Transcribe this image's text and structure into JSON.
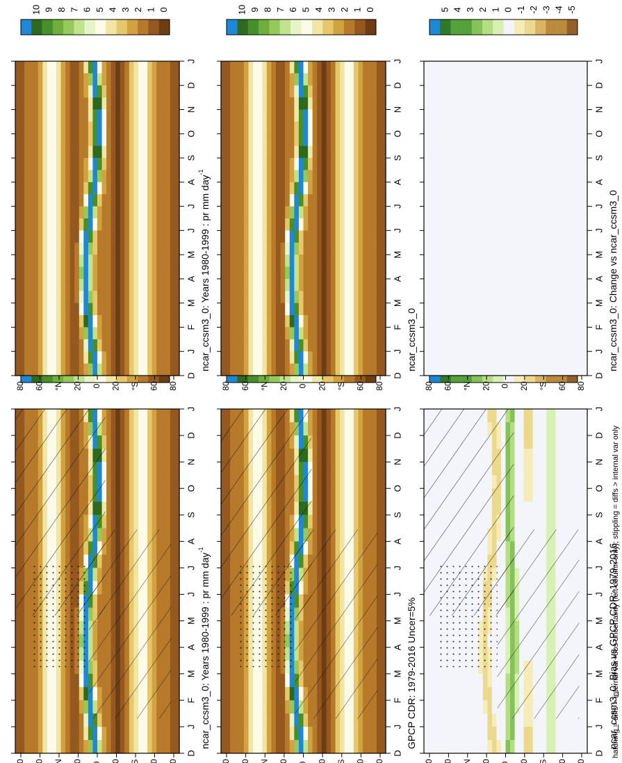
{
  "figure": {
    "footnote": "hatching = diffs > internal var+obs uncertainty (left column only); stippling = diffs > internal var only"
  },
  "chart_data": [
    {
      "type": "heatmap",
      "panel": "left-top",
      "title": "ncar_ccsm3_0: Years 1980-1999 : pr mm day",
      "title_sup": "-1",
      "x": [
        "D",
        "J",
        "F",
        "M",
        "A",
        "M",
        "J",
        "J",
        "A",
        "S",
        "O",
        "N",
        "D",
        "J"
      ],
      "y_ticks": [
        "80",
        "60",
        "°N",
        "20",
        "0",
        "20",
        "°S",
        "60",
        "80"
      ],
      "colorbar": [
        "10",
        "9",
        "8",
        "7",
        "6",
        "5",
        "4",
        "3",
        "2",
        "1",
        "0"
      ],
      "field": "mean",
      "hatched": true
    },
    {
      "type": "heatmap",
      "panel": "left-middle",
      "title": "GPCP CDR: 1979-2016 Uncer=5%",
      "x": [
        "D",
        "J",
        "F",
        "M",
        "A",
        "M",
        "J",
        "J",
        "A",
        "S",
        "O",
        "N",
        "D",
        "J"
      ],
      "y_ticks": [
        "80",
        "60",
        "°N",
        "20",
        "0",
        "20",
        "°S",
        "60",
        "80"
      ],
      "colorbar": [
        "10",
        "9",
        "8",
        "7",
        "6",
        "5",
        "4",
        "3",
        "2",
        "1",
        "0"
      ],
      "field": "mean",
      "hatched": true
    },
    {
      "type": "heatmap",
      "panel": "left-bottom",
      "title": "ncar_ccsm3_0: Bias vs GPCP CDR: 1979-2016",
      "x": [
        "D",
        "J",
        "F",
        "M",
        "A",
        "M",
        "J",
        "J",
        "A",
        "S",
        "O",
        "N",
        "D",
        "J"
      ],
      "y_ticks": [
        "80",
        "60",
        "°N",
        "20",
        "0",
        "20",
        "°S",
        "60",
        "80"
      ],
      "colorbar": [
        "5",
        "4",
        "3",
        "2",
        "1",
        "0",
        "-1",
        "-2",
        "-3",
        "-4",
        "-5"
      ],
      "field": "bias",
      "hatched": true
    },
    {
      "type": "heatmap",
      "panel": "right-top",
      "title": "ncar_ccsm3_0: Years 1980-1999 : pr mm day",
      "title_sup": "-1",
      "x": [
        "D",
        "J",
        "F",
        "M",
        "A",
        "M",
        "J",
        "J",
        "A",
        "S",
        "O",
        "N",
        "D",
        "J"
      ],
      "y_ticks": [
        "80",
        "60",
        "°N",
        "20",
        "0",
        "20",
        "°S",
        "60",
        "80"
      ],
      "colorbar": [
        "10",
        "9",
        "8",
        "7",
        "6",
        "5",
        "4",
        "3",
        "2",
        "1",
        "0"
      ],
      "field": "mean",
      "hatched": false
    },
    {
      "type": "heatmap",
      "panel": "right-middle",
      "title": "ncar_ccsm3_0",
      "x": [
        "D",
        "J",
        "F",
        "M",
        "A",
        "M",
        "J",
        "J",
        "A",
        "S",
        "O",
        "N",
        "D",
        "J"
      ],
      "y_ticks": [
        "80",
        "60",
        "°N",
        "20",
        "0",
        "20",
        "°S",
        "60",
        "80"
      ],
      "colorbar": [
        "10",
        "9",
        "8",
        "7",
        "6",
        "5",
        "4",
        "3",
        "2",
        "1",
        "0"
      ],
      "field": "mean",
      "hatched": false
    },
    {
      "type": "heatmap",
      "panel": "right-bottom",
      "title": "ncar_ccsm3_0: Change vs ncar_ccsm3_0",
      "x": [
        "D",
        "J",
        "F",
        "M",
        "A",
        "M",
        "J",
        "J",
        "A",
        "S",
        "O",
        "N",
        "D",
        "J"
      ],
      "y_ticks": [
        "80",
        "60",
        "°N",
        "20",
        "0",
        "20",
        "°S",
        "60",
        "80"
      ],
      "colorbar": [
        "5",
        "4",
        "3",
        "2",
        "1",
        "0",
        "-1",
        "-2",
        "-3",
        "-4",
        "-5"
      ],
      "field": "empty",
      "hatched": false
    }
  ],
  "colors": {
    "scale": [
      "#1e87d6",
      "#2d6a1f",
      "#45902b",
      "#6eae3d",
      "#95c95b",
      "#c1e38d",
      "#e6f5c8",
      "#fbfbe8",
      "#f1e6a6",
      "#e6c86a",
      "#d2a140",
      "#b77a2a",
      "#95581f",
      "#6e3d16"
    ],
    "empty_panel": "#f3f5fa"
  }
}
